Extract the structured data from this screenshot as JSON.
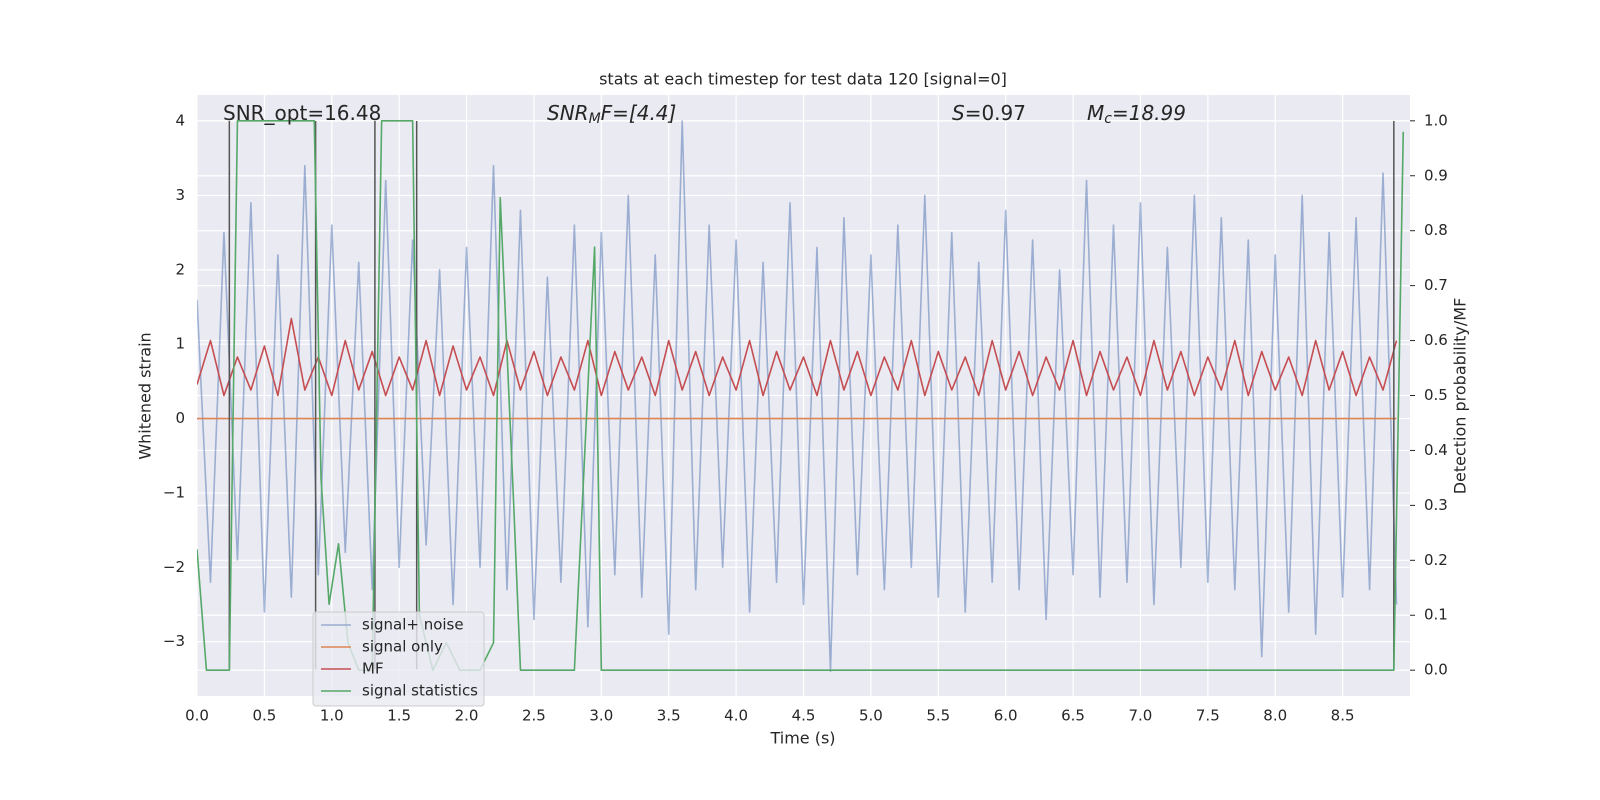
{
  "chart_data": {
    "type": "line",
    "title": "stats at each timestep for test data 120 [signal=0]",
    "xlabel": "Time (s)",
    "ylabel": "Whitened strain",
    "y2label": "Detection probability/MF",
    "xlim": [
      0,
      9.0
    ],
    "ylim": [
      -3.73,
      4.35
    ],
    "y2lim": [
      -0.047,
      1.047
    ],
    "xticks": [
      {
        "value": 0,
        "label": "0.0"
      },
      0.5,
      {
        "value": 1,
        "label": "1.0"
      },
      1.5,
      {
        "value": 2,
        "label": "2.0"
      },
      2.5,
      {
        "value": 3,
        "label": "3.0"
      },
      3.5,
      {
        "value": 4,
        "label": "4.0"
      },
      4.5,
      {
        "value": 5,
        "label": "5.0"
      },
      5.5,
      {
        "value": 6,
        "label": "6.0"
      },
      6.5,
      {
        "value": 7,
        "label": "7.0"
      },
      7.5,
      {
        "value": 8,
        "label": "8.0"
      },
      8.5
    ],
    "yticks": [
      {
        "value": -3,
        "label": "−3"
      },
      {
        "value": -2,
        "label": "−2"
      },
      {
        "value": -1,
        "label": "−1"
      },
      0,
      1,
      2,
      3,
      4
    ],
    "y2ticks": [
      {
        "value": 0,
        "label": "0.0"
      },
      0.1,
      0.2,
      0.3,
      0.4,
      0.5,
      0.6,
      0.7,
      0.8,
      0.9,
      {
        "value": 1,
        "label": "1.0"
      }
    ],
    "grid": true,
    "legend": "lower left",
    "x": [
      0.0,
      0.1,
      0.2,
      0.3,
      0.4,
      0.5,
      0.6,
      0.7,
      0.8,
      0.9,
      1.0,
      1.1,
      1.2,
      1.3,
      1.4,
      1.5,
      1.6,
      1.7,
      1.8,
      1.9,
      2.0,
      2.1,
      2.2,
      2.3,
      2.4,
      2.5,
      2.6,
      2.7,
      2.8,
      2.9,
      3.0,
      3.1,
      3.2,
      3.3,
      3.4,
      3.5,
      3.6,
      3.7,
      3.8,
      3.9,
      4.0,
      4.1,
      4.2,
      4.3,
      4.4,
      4.5,
      4.6,
      4.7,
      4.8,
      4.9,
      5.0,
      5.1,
      5.2,
      5.3,
      5.4,
      5.5,
      5.6,
      5.7,
      5.8,
      5.9,
      6.0,
      6.1,
      6.2,
      6.3,
      6.4,
      6.5,
      6.6,
      6.7,
      6.8,
      6.9,
      7.0,
      7.1,
      7.2,
      7.3,
      7.4,
      7.5,
      7.6,
      7.7,
      7.8,
      7.9,
      8.0,
      8.1,
      8.2,
      8.3,
      8.4,
      8.5,
      8.6,
      8.7,
      8.8,
      8.9
    ],
    "series": [
      {
        "name": "signal+ noise",
        "color": "#4c72b0",
        "alpha": 0.5,
        "values": [
          1.6,
          -2.2,
          2.5,
          -1.9,
          2.9,
          -2.6,
          2.2,
          -2.4,
          3.4,
          -2.1,
          2.6,
          -1.8,
          2.1,
          -2.3,
          3.2,
          -2.0,
          2.4,
          -1.7,
          2.0,
          -2.5,
          2.3,
          -2.0,
          3.4,
          -2.3,
          2.8,
          -2.7,
          1.9,
          -2.2,
          2.6,
          -2.8,
          2.5,
          -2.1,
          3.0,
          -2.4,
          2.2,
          -2.9,
          4.0,
          -2.3,
          2.6,
          -2.0,
          2.4,
          -2.6,
          2.1,
          -2.2,
          2.9,
          -2.5,
          2.3,
          -3.4,
          2.7,
          -2.1,
          2.2,
          -2.3,
          2.6,
          -2.0,
          3.0,
          -2.4,
          2.5,
          -2.6,
          2.1,
          -2.2,
          2.8,
          -2.3,
          2.4,
          -2.7,
          2.0,
          -2.1,
          3.2,
          -2.4,
          2.6,
          -2.2,
          2.9,
          -2.5,
          2.3,
          -2.0,
          3.0,
          -2.2,
          2.7,
          -2.3,
          2.4,
          -3.2,
          2.2,
          -2.6,
          3.0,
          -2.9,
          2.5,
          -2.4,
          2.7,
          -2.3,
          3.3,
          -2.5
        ]
      },
      {
        "name": "signal only",
        "color": "#dd8452",
        "values": [
          0,
          0,
          0,
          0,
          0,
          0,
          0,
          0,
          0,
          0,
          0,
          0,
          0,
          0,
          0,
          0,
          0,
          0,
          0,
          0,
          0,
          0,
          0,
          0,
          0,
          0,
          0,
          0,
          0,
          0,
          0,
          0,
          0,
          0,
          0,
          0,
          0,
          0,
          0,
          0,
          0,
          0,
          0,
          0,
          0,
          0,
          0,
          0,
          0,
          0,
          0,
          0,
          0,
          0,
          0,
          0,
          0,
          0,
          0,
          0,
          0,
          0,
          0,
          0,
          0,
          0,
          0,
          0,
          0,
          0,
          0,
          0,
          0,
          0,
          0,
          0,
          0,
          0,
          0,
          0,
          0,
          0,
          0,
          0,
          0,
          0,
          0,
          0,
          0,
          0
        ]
      },
      {
        "name": "MF",
        "color": "#c44e52",
        "axis": "y2",
        "values": [
          0.52,
          0.6,
          0.5,
          0.57,
          0.51,
          0.59,
          0.5,
          0.64,
          0.51,
          0.57,
          0.5,
          0.6,
          0.51,
          0.58,
          0.5,
          0.57,
          0.51,
          0.6,
          0.5,
          0.59,
          0.51,
          0.57,
          0.5,
          0.6,
          0.51,
          0.58,
          0.5,
          0.57,
          0.51,
          0.6,
          0.5,
          0.58,
          0.51,
          0.57,
          0.5,
          0.6,
          0.51,
          0.58,
          0.5,
          0.57,
          0.51,
          0.6,
          0.5,
          0.58,
          0.51,
          0.57,
          0.5,
          0.6,
          0.51,
          0.58,
          0.5,
          0.57,
          0.51,
          0.6,
          0.5,
          0.58,
          0.51,
          0.57,
          0.5,
          0.6,
          0.51,
          0.58,
          0.5,
          0.57,
          0.51,
          0.6,
          0.5,
          0.58,
          0.51,
          0.57,
          0.5,
          0.6,
          0.51,
          0.58,
          0.5,
          0.57,
          0.51,
          0.6,
          0.5,
          0.58,
          0.51,
          0.57,
          0.5,
          0.6,
          0.51,
          0.58,
          0.5,
          0.57,
          0.51,
          0.6
        ]
      },
      {
        "name": "signal statistics",
        "color": "#55a868",
        "axis": "y2",
        "x": [
          0.0,
          0.07,
          0.24,
          0.3,
          0.87,
          0.92,
          0.98,
          1.05,
          1.12,
          1.2,
          1.3,
          1.37,
          1.6,
          1.65,
          1.75,
          1.85,
          1.95,
          2.1,
          2.2,
          2.25,
          2.35,
          2.4,
          2.8,
          2.95,
          3.0,
          8.88,
          8.95
        ],
        "values": [
          0.22,
          0.0,
          0.0,
          1.0,
          1.0,
          0.35,
          0.12,
          0.23,
          0.05,
          0.0,
          0.0,
          1.0,
          1.0,
          0.1,
          0.0,
          0.05,
          0.0,
          0.0,
          0.05,
          0.86,
          0.3,
          0.0,
          0.0,
          0.77,
          0.0,
          0.0,
          0.98
        ]
      }
    ],
    "vlines": {
      "x": [
        0.24,
        0.88,
        1.32,
        1.63,
        8.88
      ],
      "ymin": -3.37,
      "ymax": 4,
      "color": "#555555"
    },
    "annotations": [
      {
        "base": "SNR_opt=16.48"
      },
      {
        "base": "SNR",
        "sub": "M",
        "tail": "F=[4.4]"
      },
      {
        "base": "S",
        "tail": "=0.97"
      },
      {
        "base": "M",
        "sub": "c",
        "tail": "=18.99"
      }
    ]
  }
}
